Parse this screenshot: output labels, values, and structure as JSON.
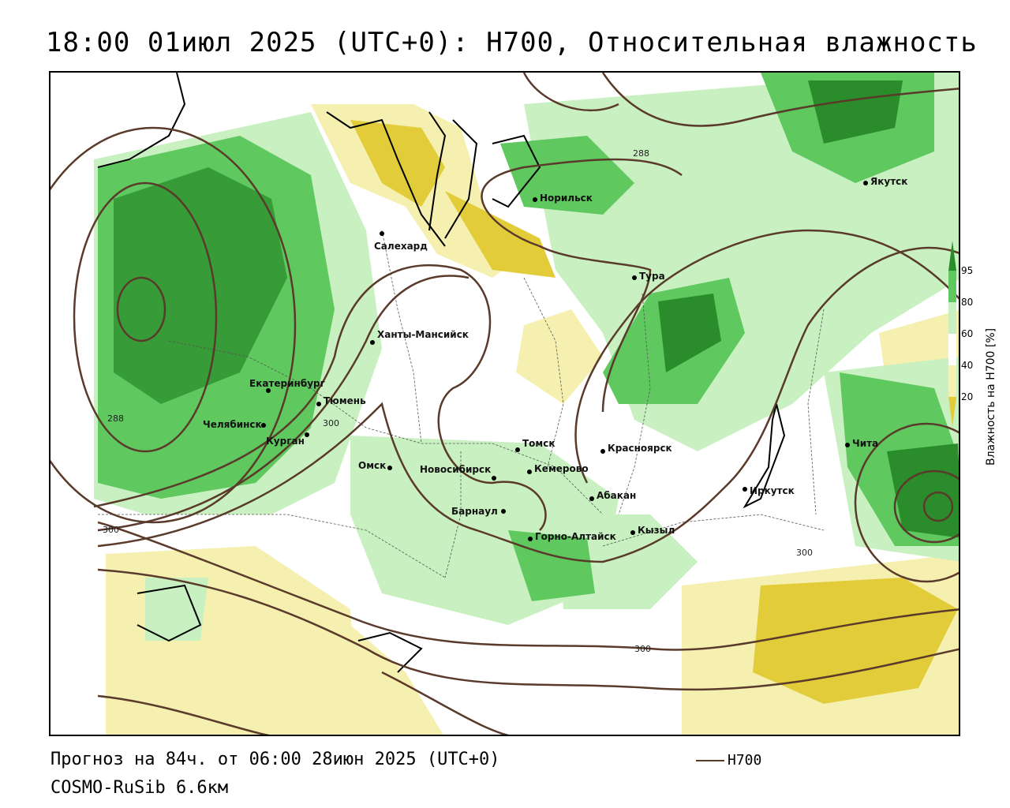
{
  "title": "18:00 01июл 2025 (UTC+0): H700, Относительная влажность",
  "footer": {
    "forecast": "Прогноз на 84ч. от 06:00 28июн 2025 (UTC+0)",
    "model": "COSMO-RuSib 6.6км",
    "legend_label": "H700"
  },
  "colorbar": {
    "ticks": [
      "95",
      "80",
      "60",
      "40",
      "20"
    ],
    "label": "Влажность на H700 [%]",
    "colors": {
      "c95": "#2a8c2a",
      "c80": "#5fc85f",
      "c60": "#c8f0c0",
      "c40": "#f5f0b0",
      "c20": "#e2cc3a"
    }
  },
  "contour_labels": [
    "288",
    "288",
    "300",
    "300",
    "300",
    "300"
  ],
  "cities": [
    {
      "name": "Норильск"
    },
    {
      "name": "Якутск"
    },
    {
      "name": "Салехард"
    },
    {
      "name": "Тура"
    },
    {
      "name": "Ханты-Мансийск"
    },
    {
      "name": "Екатеринбург"
    },
    {
      "name": "Тюмень"
    },
    {
      "name": "Челябинск"
    },
    {
      "name": "Курган"
    },
    {
      "name": "Омск"
    },
    {
      "name": "Новосибирск"
    },
    {
      "name": "Томск"
    },
    {
      "name": "Кемерово"
    },
    {
      "name": "Красноярск"
    },
    {
      "name": "Абакан"
    },
    {
      "name": "Иркутск"
    },
    {
      "name": "Чита"
    },
    {
      "name": "Барнаул"
    },
    {
      "name": "Горно-Алтайск"
    },
    {
      "name": "Кызыл"
    }
  ]
}
